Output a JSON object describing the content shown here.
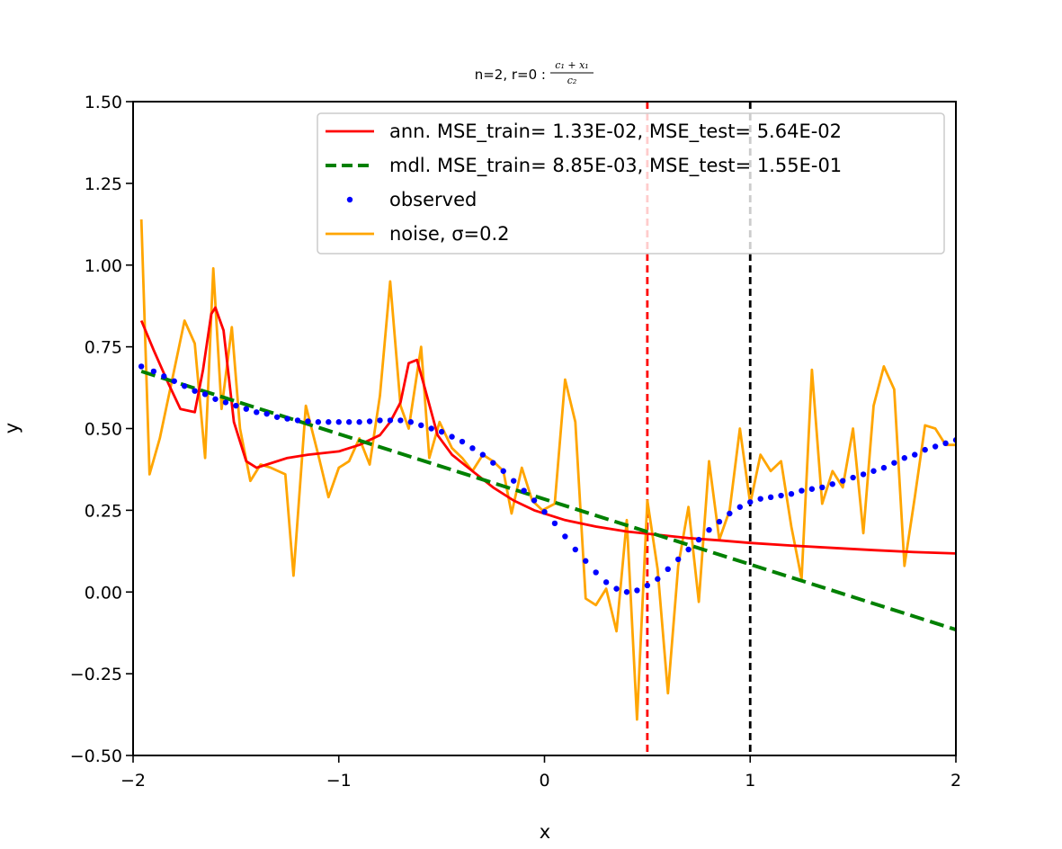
{
  "chart_data": {
    "type": "line",
    "title": {
      "prefix": "n=2, r=0 : ",
      "numerator": "c₁ + x₁",
      "denominator": "c₂"
    },
    "xlabel": "x",
    "ylabel": "y",
    "xlim": [
      -2,
      2
    ],
    "ylim": [
      -0.5,
      1.5
    ],
    "x_ticks": [
      -2,
      -1,
      0,
      1,
      2
    ],
    "x_tick_labels": [
      "−2",
      "−1",
      "0",
      "1",
      "2"
    ],
    "y_ticks": [
      -0.5,
      -0.25,
      0.0,
      0.25,
      0.5,
      0.75,
      1.0,
      1.25,
      1.5
    ],
    "y_tick_labels": [
      "−0.50",
      "−0.25",
      "0.00",
      "0.25",
      "0.50",
      "0.75",
      "1.00",
      "1.25",
      "1.50"
    ],
    "vlines": [
      {
        "x": 0.5,
        "color": "#ff0000",
        "style": "dashed"
      },
      {
        "x": 1.0,
        "color": "#000000",
        "style": "dashed"
      }
    ],
    "legend": {
      "placement": "upper right",
      "entries": [
        {
          "label": "ann.  MSE_train= 1.33E-02, MSE_test= 5.64E-02",
          "series": "ann"
        },
        {
          "label": "mdl.  MSE_train= 8.85E-03, MSE_test= 1.55E-01",
          "series": "mdl"
        },
        {
          "label": "observed",
          "series": "observed"
        },
        {
          "label": "noise, σ=0.2",
          "series": "noise"
        }
      ]
    },
    "series": [
      {
        "key": "ann",
        "color": "#ff0000",
        "style": "solid",
        "x": [
          -1.96,
          -1.9,
          -1.83,
          -1.77,
          -1.7,
          -1.66,
          -1.62,
          -1.6,
          -1.56,
          -1.51,
          -1.45,
          -1.4,
          -1.35,
          -1.25,
          -1.15,
          -1.0,
          -0.9,
          -0.8,
          -0.75,
          -0.7,
          -0.66,
          -0.62,
          -0.58,
          -0.52,
          -0.45,
          -0.35,
          -0.25,
          -0.15,
          -0.05,
          0.1,
          0.25,
          0.4,
          0.55,
          0.7,
          0.85,
          1.0,
          1.2,
          1.4,
          1.6,
          1.8,
          2.0
        ],
        "y": [
          0.83,
          0.74,
          0.64,
          0.56,
          0.55,
          0.68,
          0.85,
          0.87,
          0.8,
          0.52,
          0.4,
          0.38,
          0.39,
          0.41,
          0.42,
          0.43,
          0.45,
          0.48,
          0.52,
          0.58,
          0.7,
          0.71,
          0.62,
          0.48,
          0.42,
          0.37,
          0.32,
          0.28,
          0.25,
          0.22,
          0.2,
          0.185,
          0.175,
          0.165,
          0.158,
          0.15,
          0.142,
          0.135,
          0.128,
          0.122,
          0.118
        ]
      },
      {
        "key": "mdl",
        "color": "#008000",
        "style": "dashed",
        "x": [
          -1.96,
          2.0
        ],
        "y": [
          0.675,
          -0.115
        ]
      },
      {
        "key": "observed",
        "color": "#0000ff",
        "style": "dotted",
        "x": [
          -1.96,
          -1.9,
          -1.85,
          -1.8,
          -1.75,
          -1.7,
          -1.65,
          -1.6,
          -1.55,
          -1.5,
          -1.45,
          -1.4,
          -1.35,
          -1.3,
          -1.25,
          -1.2,
          -1.15,
          -1.1,
          -1.05,
          -1.0,
          -0.95,
          -0.9,
          -0.85,
          -0.8,
          -0.75,
          -0.7,
          -0.65,
          -0.6,
          -0.55,
          -0.5,
          -0.45,
          -0.4,
          -0.35,
          -0.3,
          -0.25,
          -0.2,
          -0.15,
          -0.1,
          -0.05,
          0.0,
          0.05,
          0.1,
          0.15,
          0.2,
          0.25,
          0.3,
          0.35,
          0.4,
          0.45,
          0.5,
          0.55,
          0.6,
          0.65,
          0.7,
          0.75,
          0.8,
          0.85,
          0.9,
          0.95,
          1.0,
          1.05,
          1.1,
          1.15,
          1.2,
          1.25,
          1.3,
          1.35,
          1.4,
          1.45,
          1.5,
          1.55,
          1.6,
          1.65,
          1.7,
          1.75,
          1.8,
          1.85,
          1.9,
          1.95,
          2.0
        ],
        "y": [
          0.69,
          0.675,
          0.66,
          0.645,
          0.63,
          0.615,
          0.605,
          0.59,
          0.58,
          0.57,
          0.56,
          0.55,
          0.545,
          0.535,
          0.53,
          0.525,
          0.522,
          0.52,
          0.52,
          0.52,
          0.52,
          0.52,
          0.522,
          0.525,
          0.525,
          0.525,
          0.52,
          0.51,
          0.5,
          0.49,
          0.475,
          0.46,
          0.44,
          0.42,
          0.395,
          0.37,
          0.34,
          0.31,
          0.28,
          0.245,
          0.21,
          0.17,
          0.13,
          0.095,
          0.06,
          0.03,
          0.01,
          0.0,
          0.005,
          0.02,
          0.04,
          0.07,
          0.1,
          0.13,
          0.16,
          0.19,
          0.215,
          0.24,
          0.26,
          0.275,
          0.285,
          0.29,
          0.295,
          0.3,
          0.31,
          0.315,
          0.32,
          0.33,
          0.34,
          0.35,
          0.36,
          0.37,
          0.38,
          0.395,
          0.41,
          0.42,
          0.435,
          0.445,
          0.455,
          0.465
        ]
      },
      {
        "key": "noise",
        "color": "#ffa500",
        "style": "solid",
        "x": [
          -1.96,
          -1.92,
          -1.87,
          -1.81,
          -1.75,
          -1.7,
          -1.65,
          -1.61,
          -1.57,
          -1.52,
          -1.48,
          -1.43,
          -1.38,
          -1.33,
          -1.26,
          -1.22,
          -1.16,
          -1.1,
          -1.05,
          -1.0,
          -0.95,
          -0.9,
          -0.85,
          -0.8,
          -0.75,
          -0.7,
          -0.66,
          -0.6,
          -0.56,
          -0.51,
          -0.45,
          -0.4,
          -0.35,
          -0.3,
          -0.25,
          -0.2,
          -0.16,
          -0.11,
          -0.06,
          -0.01,
          0.05,
          0.1,
          0.15,
          0.2,
          0.25,
          0.3,
          0.35,
          0.4,
          0.45,
          0.5,
          0.55,
          0.6,
          0.65,
          0.7,
          0.75,
          0.8,
          0.85,
          0.9,
          0.95,
          1.0,
          1.05,
          1.1,
          1.15,
          1.2,
          1.25,
          1.3,
          1.35,
          1.4,
          1.45,
          1.5,
          1.55,
          1.6,
          1.65,
          1.7,
          1.75,
          1.8,
          1.85,
          1.9,
          1.95,
          2.0
        ],
        "y": [
          1.14,
          0.36,
          0.47,
          0.65,
          0.83,
          0.76,
          0.41,
          0.99,
          0.56,
          0.81,
          0.5,
          0.34,
          0.39,
          0.38,
          0.36,
          0.05,
          0.57,
          0.42,
          0.29,
          0.38,
          0.4,
          0.47,
          0.39,
          0.6,
          0.95,
          0.57,
          0.5,
          0.75,
          0.41,
          0.52,
          0.44,
          0.41,
          0.37,
          0.42,
          0.4,
          0.37,
          0.24,
          0.38,
          0.28,
          0.25,
          0.27,
          0.65,
          0.52,
          -0.02,
          -0.04,
          0.01,
          -0.12,
          0.22,
          -0.39,
          0.28,
          0.07,
          -0.31,
          0.08,
          0.26,
          -0.03,
          0.4,
          0.16,
          0.25,
          0.5,
          0.27,
          0.42,
          0.37,
          0.4,
          0.2,
          0.04,
          0.68,
          0.27,
          0.37,
          0.32,
          0.5,
          0.18,
          0.57,
          0.69,
          0.62,
          0.08,
          0.29,
          0.51,
          0.5,
          0.45,
          0.45
        ]
      }
    ]
  }
}
